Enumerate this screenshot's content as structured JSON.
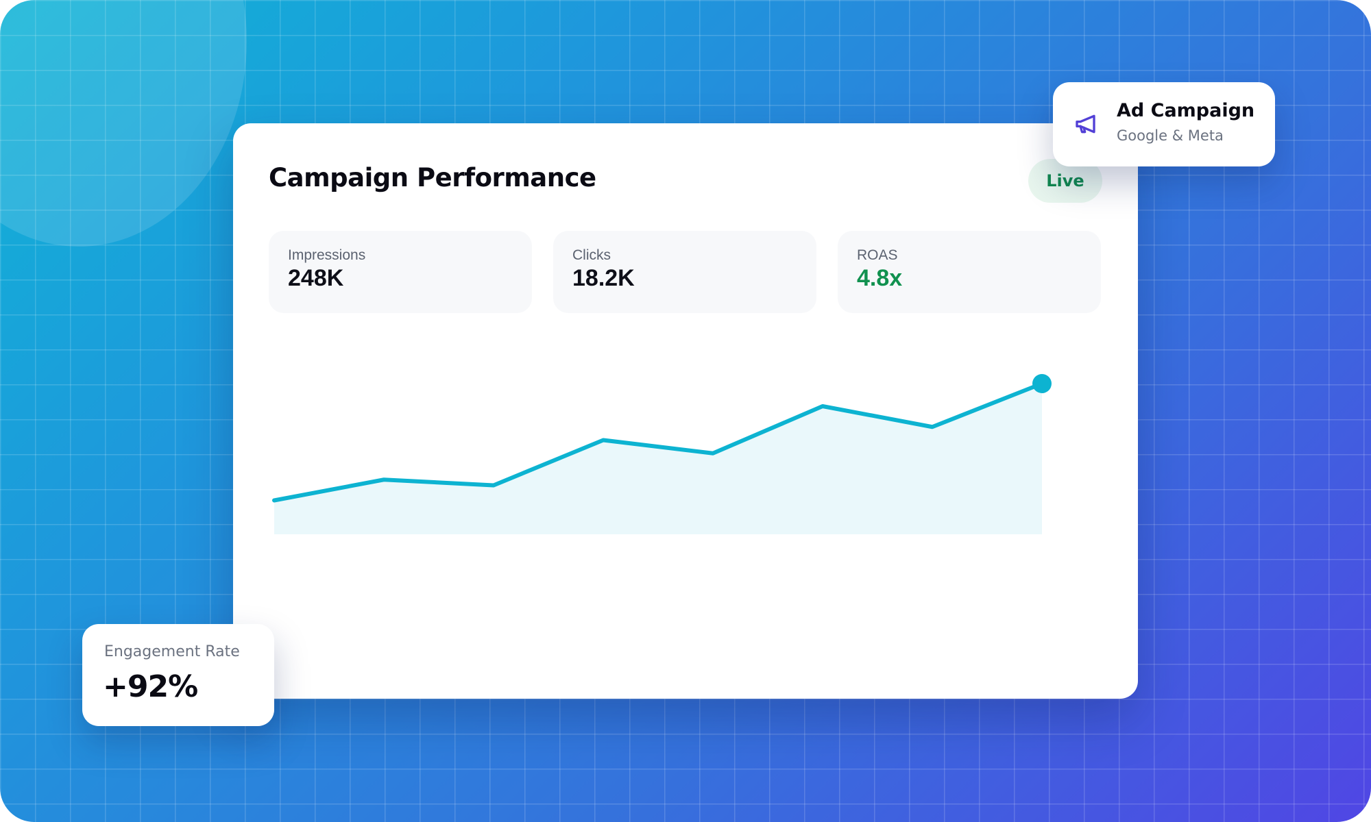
{
  "card": {
    "title": "Campaign Performance",
    "status_badge": "Live"
  },
  "stats": [
    {
      "label": "Impressions",
      "value": "248K"
    },
    {
      "label": "Clicks",
      "value": "18.2K"
    },
    {
      "label": "ROAS",
      "value": "4.8x",
      "value_color": "#11914f"
    }
  ],
  "campaign": {
    "icon": "megaphone-icon",
    "title": "Ad Campaign",
    "subtitle": "Google & Meta"
  },
  "engagement": {
    "label": "Engagement Rate",
    "value": "+92%"
  },
  "colors": {
    "line": "#0db3d1",
    "area_fill": "#eaf8fb",
    "accent_green": "#11914f",
    "icon_purple": "#5240d6"
  },
  "chart_data": {
    "type": "area",
    "x": [
      1,
      2,
      3,
      4,
      5,
      6,
      7,
      8
    ],
    "values": [
      18,
      29,
      26,
      50,
      43,
      68,
      57,
      80
    ],
    "ylim": [
      0,
      100
    ],
    "grid": false,
    "legend": "none",
    "last_point_marker": true
  }
}
